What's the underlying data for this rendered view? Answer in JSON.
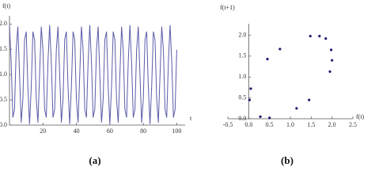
{
  "chart_data": [
    {
      "type": "line",
      "caption": "(a)",
      "ylabel": "f(t)",
      "xlabel": "t",
      "color": "#5b5ba8",
      "x": [
        0,
        1,
        2,
        3,
        4,
        5,
        6,
        7,
        8,
        9,
        10,
        11,
        12,
        13,
        14,
        15,
        16,
        17,
        18,
        19,
        20,
        21,
        22,
        23,
        24,
        25,
        26,
        27,
        28,
        29,
        30,
        31,
        32,
        33,
        34,
        35,
        36,
        37,
        38,
        39,
        40,
        41,
        42,
        43,
        44,
        45,
        46,
        47,
        48,
        49,
        50,
        51,
        52,
        53,
        54,
        55,
        56,
        57,
        58,
        59,
        60,
        61,
        62,
        63,
        64,
        65,
        66,
        67,
        68,
        69,
        70,
        71,
        72,
        73,
        74,
        75,
        76,
        77,
        78,
        79,
        80,
        81,
        82,
        83,
        84,
        85,
        86,
        87,
        88,
        89,
        90,
        91,
        92,
        93,
        94,
        95,
        96,
        97,
        98,
        99,
        100
      ],
      "values": [
        1.98,
        1.25,
        0.15,
        0.31,
        1.49,
        1.95,
        1.0,
        0.05,
        0.51,
        1.69,
        1.85,
        0.75,
        0.02,
        0.75,
        1.85,
        1.69,
        0.51,
        0.05,
        1.0,
        1.95,
        1.49,
        0.31,
        0.15,
        1.25,
        1.98,
        1.25,
        0.15,
        0.31,
        1.49,
        1.95,
        1.0,
        0.05,
        0.51,
        1.69,
        1.85,
        0.75,
        0.02,
        0.75,
        1.85,
        1.69,
        0.51,
        0.05,
        1.0,
        1.95,
        1.49,
        0.31,
        0.15,
        1.25,
        1.98,
        1.25,
        0.15,
        0.31,
        1.49,
        1.95,
        1.0,
        0.05,
        0.51,
        1.69,
        1.85,
        0.75,
        0.02,
        0.75,
        1.85,
        1.69,
        0.51,
        0.05,
        1.0,
        1.95,
        1.49,
        0.31,
        0.15,
        1.25,
        1.98,
        1.25,
        0.15,
        0.31,
        1.49,
        1.95,
        1.0,
        0.05,
        0.51,
        1.69,
        1.85,
        0.75,
        0.02,
        0.75,
        1.85,
        1.69,
        0.51,
        0.05,
        1.0,
        1.95,
        1.49,
        0.31,
        0.15,
        1.25,
        1.98,
        1.25,
        0.15,
        0.31,
        1.49
      ],
      "xlim": [
        0,
        105
      ],
      "xticks": [
        20,
        40,
        60,
        80,
        100
      ],
      "ylim": [
        0,
        2.1
      ],
      "yticks": [
        {
          "value": 0,
          "label": "0.0"
        },
        {
          "value": 0.5,
          "label": "0.5"
        },
        {
          "value": 1,
          "label": "1.0"
        },
        {
          "value": 1.5,
          "label": "1.5"
        },
        {
          "value": 2,
          "label": "2.0"
        }
      ]
    },
    {
      "type": "scatter",
      "caption": "(b)",
      "ylabel": "f(t+1)",
      "xlabel": "f(t)",
      "color": "#1c1c6e",
      "x": [
        0.02,
        0.05,
        0.28,
        0.5,
        0.45,
        0.75,
        1.15,
        1.45,
        1.48,
        1.7,
        1.85,
        1.98,
        2.0,
        1.95
      ],
      "values": [
        0.45,
        0.72,
        0.05,
        0.02,
        1.43,
        1.67,
        0.25,
        0.45,
        1.98,
        1.98,
        1.92,
        1.65,
        1.4,
        1.13
      ],
      "xlim": [
        -0.5,
        2.5
      ],
      "xticks": [
        -0.5,
        {
          "value": 0,
          "label": "0.0"
        },
        0.5,
        {
          "value": 1,
          "label": "1.0"
        },
        1.5,
        {
          "value": 2,
          "label": "2.0"
        },
        2.5
      ],
      "ylim": [
        0,
        2.2
      ],
      "yticks": [
        {
          "value": 0,
          "label": "0.0"
        },
        0.5,
        {
          "value": 1,
          "label": "1.0"
        },
        1.5,
        {
          "value": 2,
          "label": "2.0"
        }
      ]
    }
  ]
}
